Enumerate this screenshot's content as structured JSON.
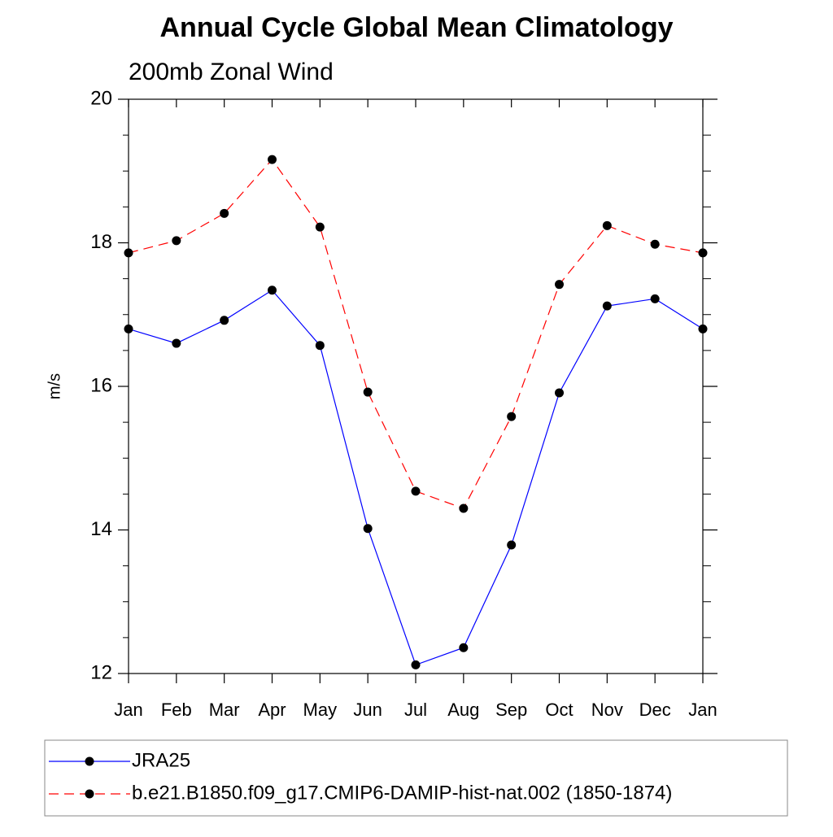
{
  "chart_data": {
    "type": "line",
    "title": "Annual Cycle Global Mean Climatology",
    "subtitle": "200mb Zonal Wind",
    "y_label": "m/s",
    "categories": [
      "Jan",
      "Feb",
      "Mar",
      "Apr",
      "May",
      "Jun",
      "Jul",
      "Aug",
      "Sep",
      "Oct",
      "Nov",
      "Dec",
      "Jan"
    ],
    "series": [
      {
        "name": "JRA25",
        "color": "#0000ff",
        "dash": "solid",
        "values": [
          16.8,
          16.6,
          16.92,
          17.34,
          16.57,
          14.02,
          12.12,
          12.36,
          13.79,
          15.91,
          17.12,
          17.22,
          16.8
        ]
      },
      {
        "name": "b.e21.B1850.f09_g17.CMIP6-DAMIP-hist-nat.002 (1850-1874)",
        "color": "#ff0000",
        "dash": "dashed",
        "values": [
          17.86,
          18.03,
          18.41,
          19.16,
          18.22,
          15.92,
          14.54,
          14.3,
          15.58,
          17.42,
          18.24,
          17.98,
          17.86
        ]
      }
    ],
    "ylim": [
      12,
      20
    ],
    "yticks": [
      12,
      14,
      16,
      18,
      20
    ],
    "grid": false
  }
}
